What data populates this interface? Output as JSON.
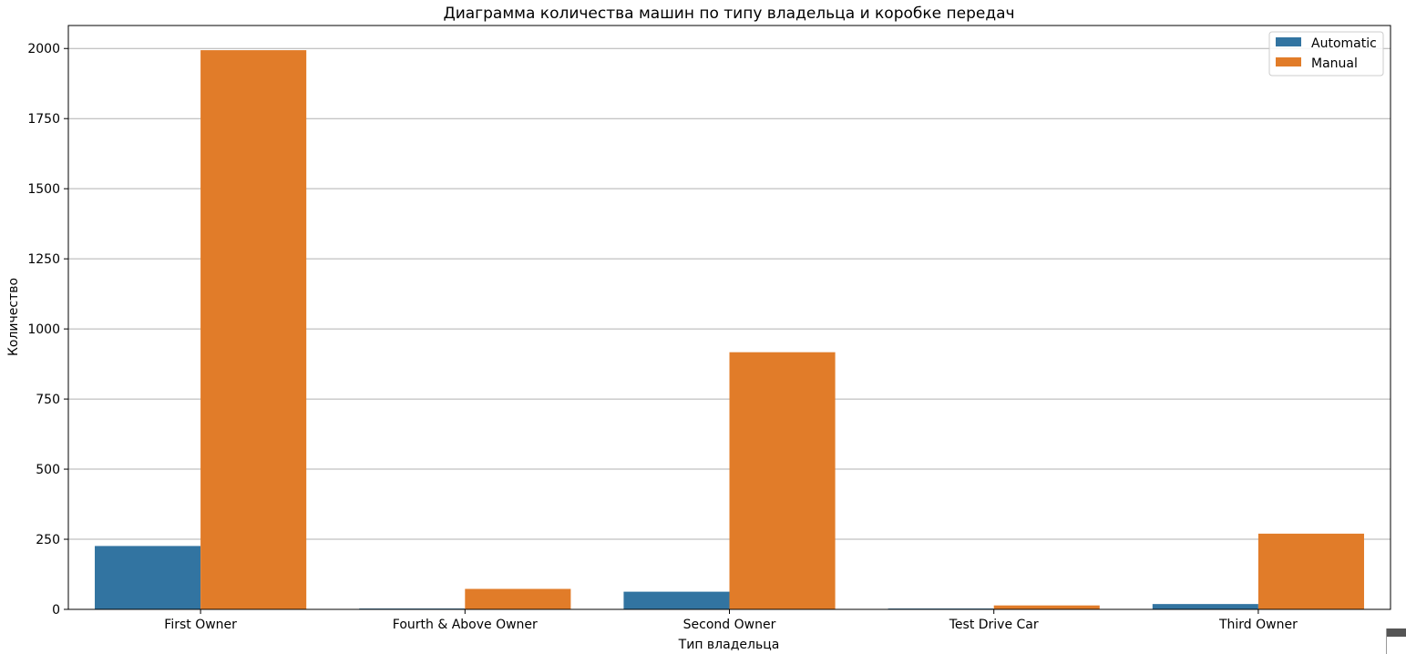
{
  "chart_data": {
    "type": "bar",
    "title": "Диаграмма количества машин по типу владельца и коробке передач",
    "xlabel": "Тип владельца",
    "ylabel": "Количество",
    "categories": [
      "First Owner",
      "Fourth & Above Owner",
      "Second Owner",
      "Test Drive Car",
      "Third Owner"
    ],
    "series": [
      {
        "name": "Automatic",
        "color": "#3274a1",
        "values": [
          226,
          3,
          63,
          3,
          19
        ]
      },
      {
        "name": "Manual",
        "color": "#e17c29",
        "values": [
          1994,
          73,
          917,
          14,
          270
        ]
      }
    ],
    "ylim": [
      0,
      2082
    ],
    "yticks": [
      0,
      250,
      500,
      750,
      1000,
      1250,
      1500,
      1750,
      2000
    ],
    "grid": "y",
    "legend": "top-right"
  }
}
